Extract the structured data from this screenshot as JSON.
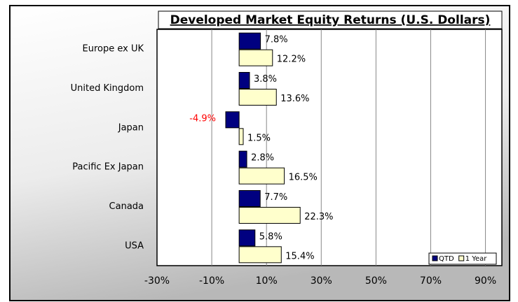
{
  "chart_data": {
    "type": "hbar",
    "title": "Developed Market Equity Returns (U.S. Dollars)",
    "categories": [
      "Europe ex UK",
      "United Kingdom",
      "Japan",
      "Pacific Ex Japan",
      "Canada",
      "USA"
    ],
    "series": [
      {
        "name": "QTD",
        "color": "#000080",
        "values": [
          7.8,
          3.8,
          -4.9,
          2.8,
          7.7,
          5.8
        ],
        "value_labels": [
          "7.8%",
          "3.8%",
          "-4.9%",
          "2.8%",
          "7.7%",
          "5.8%"
        ]
      },
      {
        "name": "1 Year",
        "color": "#ffffcc",
        "values": [
          12.2,
          13.6,
          1.5,
          16.5,
          22.3,
          15.4
        ],
        "value_labels": [
          "12.2%",
          "13.6%",
          "1.5%",
          "16.5%",
          "22.3%",
          "15.4%"
        ]
      }
    ],
    "xlim": [
      -30,
      96
    ],
    "xticks": [
      {
        "value": -30,
        "label": "-30%"
      },
      {
        "value": -10,
        "label": "-10%"
      },
      {
        "value": 10,
        "label": "10%"
      },
      {
        "value": 30,
        "label": "30%"
      },
      {
        "value": 50,
        "label": "50%"
      },
      {
        "value": 70,
        "label": "70%"
      },
      {
        "value": 90,
        "label": "90%"
      }
    ],
    "grid": true,
    "legend": "lower right",
    "negative_label_color": "#ff0000"
  }
}
